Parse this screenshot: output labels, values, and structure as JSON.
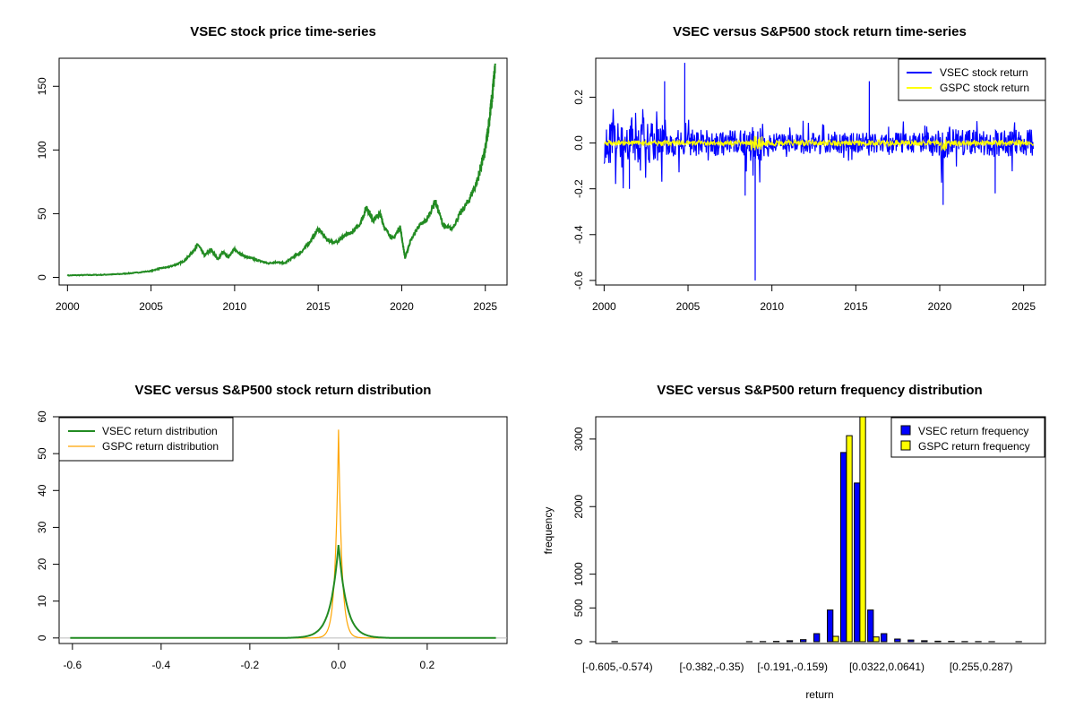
{
  "colors": {
    "vsec_price": "#228b22",
    "vsec_return": "#0000ff",
    "gspc_return": "#ffff00",
    "vsec_density": "#228b22",
    "gspc_density": "#ffa500",
    "vsec_bar": "#0000ff",
    "gspc_bar": "#ffff00"
  },
  "chart_data": [
    {
      "type": "line",
      "title": "VSEC stock price time-series",
      "xlabel": "",
      "ylabel": "",
      "xlim": [
        1999.5,
        2026.3
      ],
      "ylim": [
        -6,
        172
      ],
      "x_ticks": [
        "2000",
        "2005",
        "2010",
        "2015",
        "2020",
        "2025"
      ],
      "y_ticks": [
        "0",
        "50",
        "100",
        "150"
      ],
      "grid": false,
      "series": [
        {
          "x": [
            2000.0,
            2001.0,
            2002.0,
            2003.0,
            2004.0,
            2005.0,
            2005.5,
            2006.0,
            2006.5,
            2007.0,
            2007.5,
            2007.8,
            2008.2,
            2008.6,
            2009.0,
            2009.3,
            2009.6,
            2010.0,
            2010.5,
            2011.0,
            2011.5,
            2012.0,
            2012.5,
            2013.0,
            2013.5,
            2014.0,
            2014.5,
            2015.0,
            2015.5,
            2016.0,
            2016.5,
            2017.0,
            2017.5,
            2017.9,
            2018.3,
            2018.7,
            2019.0,
            2019.5,
            2019.9,
            2020.2,
            2020.5,
            2021.0,
            2021.5,
            2022.0,
            2022.5,
            2023.0,
            2023.5,
            2024.0,
            2024.5,
            2024.8,
            2025.0,
            2025.2,
            2025.4,
            2025.6
          ],
          "values": [
            1.5,
            1.8,
            2.0,
            2.5,
            3.5,
            5.0,
            7.0,
            8.0,
            10.0,
            13.0,
            20.0,
            26.0,
            17.0,
            22.0,
            14.0,
            20.0,
            16.0,
            22.0,
            17.0,
            15.0,
            13.0,
            11.0,
            12.0,
            11.0,
            16.0,
            20.0,
            28.0,
            38.0,
            30.0,
            27.0,
            32.0,
            35.0,
            42.0,
            55.0,
            45.0,
            50.0,
            38.0,
            30.0,
            40.0,
            15.0,
            28.0,
            40.0,
            45.0,
            60.0,
            40.0,
            38.0,
            50.0,
            60.0,
            75.0,
            90.0,
            100.0,
            120.0,
            140.0,
            167.0
          ]
        }
      ]
    },
    {
      "type": "line",
      "title": "VSEC versus S&P500 stock return time-series",
      "xlabel": "",
      "ylabel": "",
      "xlim": [
        1999.5,
        2026.3
      ],
      "ylim": [
        -0.62,
        0.37
      ],
      "x_ticks": [
        "2000",
        "2005",
        "2010",
        "2015",
        "2020",
        "2025"
      ],
      "y_ticks": [
        "-0.6",
        "-0.4",
        "-0.2",
        "0.0",
        "0.2"
      ],
      "legend": "top-right",
      "series": [
        {
          "name": "VSEC stock return",
          "spikes": [
            [
              2003.6,
              0.27
            ],
            [
              2004.8,
              0.35
            ],
            [
              2009.0,
              -0.6
            ],
            [
              2015.8,
              0.27
            ],
            [
              2020.2,
              -0.27
            ],
            [
              2023.3,
              -0.22
            ],
            [
              2008.4,
              -0.23
            ],
            [
              2001.5,
              -0.2
            ]
          ],
          "typical_amplitude": 0.06
        },
        {
          "name": "GSPC stock return",
          "typical_amplitude": 0.012
        }
      ]
    },
    {
      "type": "line",
      "title": "VSEC versus S&P500 stock return distribution",
      "xlabel": "",
      "ylabel": "",
      "xlim": [
        -0.63,
        0.38
      ],
      "ylim": [
        -1.5,
        60
      ],
      "x_ticks": [
        "-0.6",
        "-0.4",
        "-0.2",
        "0.0",
        "0.2"
      ],
      "y_ticks": [
        "0",
        "10",
        "20",
        "30",
        "40",
        "50",
        "60"
      ],
      "legend": "top-left",
      "series": [
        {
          "name": "VSEC return distribution",
          "peak": 25.5,
          "scale": 0.018
        },
        {
          "name": "GSPC return distribution",
          "peak": 56.5,
          "scale": 0.0075
        }
      ]
    },
    {
      "type": "bar",
      "title": "VSEC versus S&P500 return frequency distribution",
      "xlabel": "return",
      "ylabel": "frequency",
      "ylim": [
        0,
        3330
      ],
      "y_ticks": [
        "0",
        "500",
        "1000",
        "2000",
        "3000"
      ],
      "x_tick_labels": [
        "[-0.605,-0.574)",
        "[-0.382,-0.35)",
        "[-0.191,-0.159)",
        "[0.0322,0.0641)",
        "[0.255,0.287)"
      ],
      "legend": "top-right",
      "n_bins": 31,
      "series": [
        {
          "name": "VSEC return frequency",
          "values": [
            1,
            0,
            0,
            0,
            0,
            0,
            0,
            0,
            0,
            0,
            1,
            2,
            5,
            15,
            30,
            120,
            470,
            2800,
            2350,
            470,
            120,
            40,
            25,
            15,
            8,
            5,
            3,
            2,
            1,
            0,
            1
          ]
        },
        {
          "name": "GSPC return frequency",
          "values": [
            0,
            0,
            0,
            0,
            0,
            0,
            0,
            0,
            0,
            0,
            0,
            0,
            0,
            0,
            0,
            0,
            80,
            3050,
            3330,
            70,
            0,
            0,
            0,
            0,
            0,
            0,
            0,
            0,
            0,
            0,
            0
          ]
        }
      ]
    }
  ]
}
